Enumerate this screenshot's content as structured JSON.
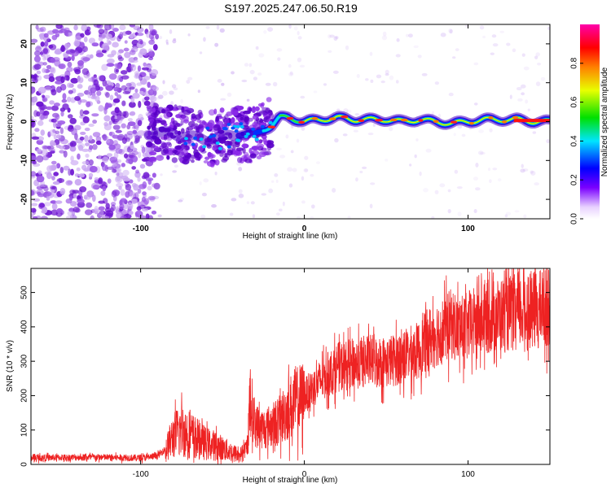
{
  "title": "S197.2025.247.06.50.R19",
  "colors": {
    "snr_line": "#ee2222",
    "noise_low": "#c9a6f2",
    "noise_mid": "#9a55e6",
    "noise_high": "#6a10d0",
    "frame": "#000000"
  },
  "chart_data": [
    {
      "type": "heatmap",
      "title": "S197.2025.247.06.50.R19",
      "xlabel": "Height of straight line (km)",
      "ylabel": "Frequency (Hz)",
      "xlim": [
        -167,
        150
      ],
      "ylim": [
        -25,
        25
      ],
      "x_ticks": [
        -100,
        0,
        100
      ],
      "x_tick_labels": [
        "-100",
        "0",
        "100"
      ],
      "y_ticks": [
        -20,
        -10,
        0,
        10,
        20
      ],
      "y_tick_labels": [
        "-20",
        "-10",
        "0",
        "10",
        "20"
      ],
      "colorbar": {
        "label": "Normalized spectral amplitude",
        "range": [
          0,
          1
        ],
        "ticks": [
          0.0,
          0.2,
          0.4,
          0.6,
          0.8
        ],
        "tick_labels": [
          "0.0",
          "0.2",
          "0.4",
          "0.6",
          "0.8"
        ],
        "colormap": "rainbow (purple-blue-cyan-green-yellow-red-magenta)"
      },
      "ridge": {
        "description": "coherent energy near 0 Hz, drifting from about -5 Hz at -60 km to about 0 Hz beyond -15 km",
        "x": [
          -95,
          -80,
          -70,
          -60,
          -50,
          -40,
          -30,
          -25,
          -20,
          -15,
          -10,
          -5,
          0,
          10,
          20,
          30,
          40,
          50,
          60,
          70,
          80,
          90,
          100,
          110,
          120,
          130,
          140,
          150
        ],
        "y": [
          -3,
          -3,
          -4,
          -4.5,
          -4,
          -3,
          -3.5,
          -2,
          -1,
          1,
          1,
          0.5,
          0,
          0.5,
          1,
          0.5,
          0.5,
          0.5,
          0,
          0.5,
          0,
          -0.5,
          0,
          0.5,
          0.5,
          0.5,
          0,
          0
        ]
      },
      "noise_region": {
        "x_range": [
          -167,
          -90
        ],
        "description": "scattered incoherent purple blobs across all frequencies"
      }
    },
    {
      "type": "line",
      "xlabel": "Height of straight line (km)",
      "ylabel": "SNR (10 * v/v)",
      "xlim": [
        -167,
        150
      ],
      "ylim": [
        0,
        570
      ],
      "x_ticks": [
        -100,
        0,
        100
      ],
      "x_tick_labels": [
        "-100",
        "0",
        "100"
      ],
      "y_ticks": [
        0,
        100,
        200,
        300,
        400,
        500
      ],
      "y_tick_labels": [
        "0",
        "100",
        "200",
        "300",
        "400",
        "500"
      ],
      "series": [
        {
          "name": "SNR",
          "description": "noisy trace; approximate envelope of the signal",
          "x": [
            -167,
            -130,
            -100,
            -90,
            -85,
            -80,
            -75,
            -70,
            -65,
            -60,
            -55,
            -50,
            -45,
            -40,
            -35,
            -33,
            -30,
            -25,
            -20,
            -15,
            -10,
            -5,
            0,
            10,
            20,
            30,
            40,
            50,
            60,
            70,
            75,
            80,
            85,
            90,
            95,
            100,
            110,
            120,
            130,
            140,
            150
          ],
          "y": [
            20,
            22,
            20,
            25,
            45,
            90,
            110,
            95,
            80,
            65,
            60,
            50,
            40,
            30,
            50,
            200,
            120,
            110,
            120,
            135,
            170,
            190,
            205,
            250,
            290,
            300,
            310,
            305,
            320,
            340,
            370,
            390,
            400,
            420,
            400,
            410,
            440,
            445,
            455,
            460,
            470
          ]
        }
      ]
    }
  ]
}
